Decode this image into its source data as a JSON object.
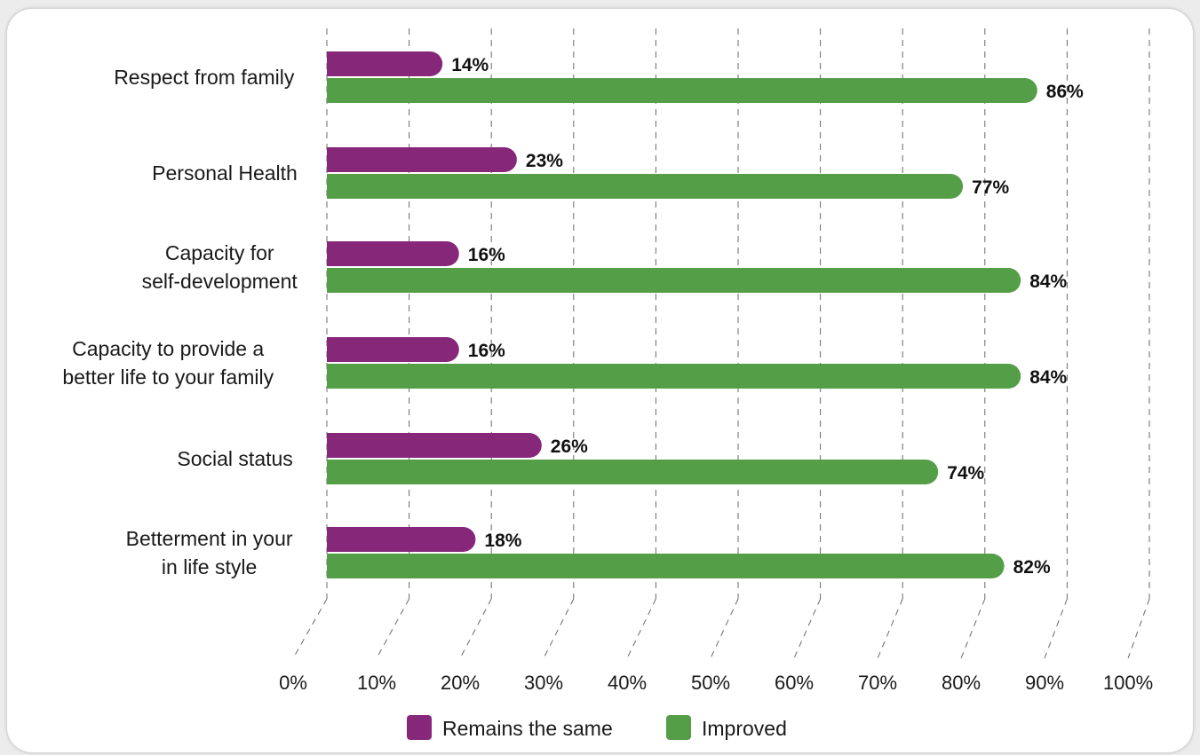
{
  "chart_data": {
    "type": "bar",
    "orientation": "horizontal",
    "categories": [
      [
        "Respect from family"
      ],
      [
        "Personal Health"
      ],
      [
        "Capacity for",
        "self-development"
      ],
      [
        "Capacity to provide a",
        "better life to your family"
      ],
      [
        "Social status"
      ],
      [
        "Betterment in your",
        "in life style"
      ]
    ],
    "series": [
      {
        "name": "Remains the same",
        "color": "#87277a",
        "values": [
          14,
          23,
          16,
          16,
          26,
          18
        ],
        "labels": [
          "14%",
          "23%",
          "16%",
          "16%",
          "26%",
          "18%"
        ]
      },
      {
        "name": "Improved",
        "color": "#549e47",
        "values": [
          86,
          77,
          84,
          84,
          74,
          82
        ],
        "labels": [
          "86%",
          "77%",
          "84%",
          "84%",
          "74%",
          "82%"
        ]
      }
    ],
    "xlim": [
      0,
      100
    ],
    "xticks": [
      "0%",
      "10%",
      "20%",
      "30%",
      "40%",
      "50%",
      "60%",
      "70%",
      "80%",
      "90%",
      "100%"
    ],
    "grid": true,
    "legend_position": "bottom"
  }
}
